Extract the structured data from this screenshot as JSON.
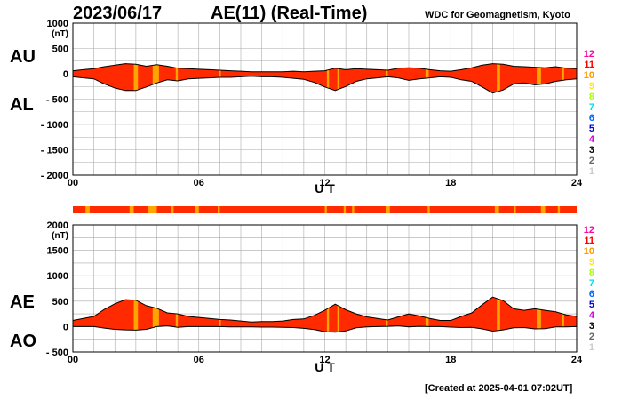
{
  "header": {
    "date": "2023/06/17",
    "title": "AE(11) (Real-Time)",
    "source": "WDC for Geomagnetism, Kyoto"
  },
  "footer": {
    "created": "[Created at 2025-04-01 07:02UT]"
  },
  "colors": {
    "fill": "#ff2a00",
    "highlight": "#ffa500",
    "grid": "#aaaaaa",
    "line": "#000000"
  },
  "legend": {
    "levels": [
      {
        "label": "12",
        "color": "#ff00aa"
      },
      {
        "label": "11",
        "color": "#ff0000"
      },
      {
        "label": "10",
        "color": "#ff9900"
      },
      {
        "label": "9",
        "color": "#ffee00"
      },
      {
        "label": "8",
        "color": "#aaff00"
      },
      {
        "label": "7",
        "color": "#00dddd"
      },
      {
        "label": "6",
        "color": "#0066ff"
      },
      {
        "label": "5",
        "color": "#0000cc"
      },
      {
        "label": "4",
        "color": "#cc00cc"
      },
      {
        "label": "3",
        "color": "#000000"
      },
      {
        "label": "2",
        "color": "#666666"
      },
      {
        "label": "1",
        "color": "#cccccc"
      }
    ]
  },
  "chart_data": [
    {
      "type": "area",
      "unit": "(nT)",
      "xlabel": "U T",
      "upper_label": "AU",
      "lower_label": "AL",
      "xlim": [
        0,
        24
      ],
      "ylim": [
        -2000,
        1000
      ],
      "x_ticks": [
        {
          "v": 0,
          "t": "00"
        },
        {
          "v": 6,
          "t": "06"
        },
        {
          "v": 12,
          "t": "12"
        },
        {
          "v": 18,
          "t": "18"
        },
        {
          "v": 24,
          "t": "24"
        }
      ],
      "y_ticks": [
        {
          "v": 1000,
          "t": "1000"
        },
        {
          "v": 500,
          "t": "500"
        },
        {
          "v": 0,
          "t": "0"
        },
        {
          "v": -500,
          "t": "- 500"
        },
        {
          "v": -1000,
          "t": "- 1000"
        },
        {
          "v": -1500,
          "t": "- 1500"
        },
        {
          "v": -2000,
          "t": "- 2000"
        }
      ],
      "series": [
        {
          "name": "AU",
          "x": [
            0,
            0.5,
            1,
            1.5,
            2,
            2.5,
            3,
            3.5,
            4,
            4.5,
            5,
            5.5,
            6,
            6.5,
            7,
            7.5,
            8,
            8.5,
            9,
            9.5,
            10,
            10.5,
            11,
            11.5,
            12,
            12.5,
            13,
            13.5,
            14,
            14.5,
            15,
            15.5,
            16,
            16.5,
            17,
            17.5,
            18,
            18.5,
            19,
            19.5,
            20,
            20.5,
            21,
            21.5,
            22,
            22.5,
            23,
            23.5,
            24
          ],
          "values": [
            60,
            80,
            100,
            140,
            170,
            200,
            190,
            150,
            180,
            150,
            110,
            100,
            90,
            80,
            70,
            60,
            50,
            40,
            40,
            40,
            40,
            50,
            40,
            50,
            60,
            110,
            80,
            100,
            90,
            80,
            70,
            110,
            120,
            110,
            80,
            60,
            50,
            80,
            120,
            170,
            200,
            190,
            150,
            140,
            130,
            120,
            140,
            110,
            100
          ]
        },
        {
          "name": "AL",
          "x": [
            0,
            0.5,
            1,
            1.5,
            2,
            2.5,
            3,
            3.5,
            4,
            4.5,
            5,
            5.5,
            6,
            6.5,
            7,
            7.5,
            8,
            8.5,
            9,
            9.5,
            10,
            10.5,
            11,
            11.5,
            12,
            12.5,
            13,
            13.5,
            14,
            14.5,
            15,
            15.5,
            16,
            16.5,
            17,
            17.5,
            18,
            18.5,
            19,
            19.5,
            20,
            20.5,
            21,
            21.5,
            22,
            22.5,
            23,
            23.5,
            24
          ],
          "values": [
            -60,
            -80,
            -100,
            -200,
            -280,
            -330,
            -330,
            -260,
            -180,
            -120,
            -140,
            -100,
            -90,
            -80,
            -70,
            -70,
            -60,
            -50,
            -60,
            -60,
            -70,
            -90,
            -110,
            -170,
            -260,
            -330,
            -250,
            -150,
            -100,
            -80,
            -60,
            -80,
            -130,
            -100,
            -80,
            -60,
            -70,
            -120,
            -150,
            -260,
            -380,
            -320,
            -200,
            -180,
            -220,
            -200,
            -150,
            -120,
            -100
          ]
        }
      ],
      "highlight_bands": [
        [
          2.9,
          3.1
        ],
        [
          3.8,
          4.1
        ],
        [
          4.9,
          5.0
        ],
        [
          6.95,
          7.05
        ],
        [
          12.1,
          12.2
        ],
        [
          12.6,
          12.7
        ],
        [
          14.9,
          15.0
        ],
        [
          16.8,
          16.95
        ],
        [
          20.2,
          20.35
        ],
        [
          22.1,
          22.3
        ],
        [
          23.3,
          23.4
        ]
      ]
    },
    {
      "type": "area",
      "unit": "(nT)",
      "xlabel": "U T",
      "upper_label": "AE",
      "lower_label": "AO",
      "xlim": [
        0,
        24
      ],
      "ylim": [
        -500,
        2000
      ],
      "x_ticks": [
        {
          "v": 0,
          "t": "00"
        },
        {
          "v": 6,
          "t": "06"
        },
        {
          "v": 12,
          "t": "12"
        },
        {
          "v": 18,
          "t": "18"
        },
        {
          "v": 24,
          "t": "24"
        }
      ],
      "y_ticks": [
        {
          "v": 2000,
          "t": "2000"
        },
        {
          "v": 1500,
          "t": "1500"
        },
        {
          "v": 1000,
          "t": "1000"
        },
        {
          "v": 500,
          "t": "500"
        },
        {
          "v": 0,
          "t": "0"
        },
        {
          "v": -500,
          "t": "- 500"
        }
      ],
      "series": [
        {
          "name": "AE",
          "x": [
            0,
            0.5,
            1,
            1.5,
            2,
            2.5,
            3,
            3.5,
            4,
            4.5,
            5,
            5.5,
            6,
            6.5,
            7,
            7.5,
            8,
            8.5,
            9,
            9.5,
            10,
            10.5,
            11,
            11.5,
            12,
            12.5,
            13,
            13.5,
            14,
            14.5,
            15,
            15.5,
            16,
            16.5,
            17,
            17.5,
            18,
            18.5,
            19,
            19.5,
            20,
            20.5,
            21,
            21.5,
            22,
            22.5,
            23,
            23.5,
            24
          ],
          "values": [
            120,
            160,
            200,
            340,
            450,
            530,
            520,
            410,
            360,
            270,
            250,
            200,
            180,
            160,
            140,
            130,
            110,
            90,
            100,
            100,
            110,
            140,
            150,
            220,
            320,
            440,
            330,
            250,
            190,
            160,
            130,
            190,
            250,
            210,
            160,
            120,
            120,
            200,
            270,
            430,
            580,
            510,
            350,
            320,
            350,
            320,
            290,
            230,
            200
          ]
        },
        {
          "name": "AO",
          "x": [
            0,
            0.5,
            1,
            1.5,
            2,
            2.5,
            3,
            3.5,
            4,
            4.5,
            5,
            5.5,
            6,
            6.5,
            7,
            7.5,
            8,
            8.5,
            9,
            9.5,
            10,
            10.5,
            11,
            11.5,
            12,
            12.5,
            13,
            13.5,
            14,
            14.5,
            15,
            15.5,
            16,
            16.5,
            17,
            17.5,
            18,
            18.5,
            19,
            19.5,
            20,
            20.5,
            21,
            21.5,
            22,
            22.5,
            23,
            23.5,
            24
          ],
          "values": [
            0,
            0,
            0,
            -30,
            -55,
            -65,
            -70,
            -55,
            0,
            15,
            -15,
            0,
            0,
            0,
            0,
            -5,
            -5,
            -5,
            -10,
            -10,
            -15,
            -20,
            -35,
            -60,
            -100,
            -110,
            -85,
            -25,
            -5,
            0,
            5,
            15,
            -5,
            5,
            0,
            0,
            -10,
            -20,
            -15,
            -45,
            -90,
            -65,
            -25,
            -20,
            -45,
            -40,
            -5,
            -5,
            0
          ]
        }
      ],
      "highlight_bands": [
        [
          2.9,
          3.1
        ],
        [
          3.8,
          4.1
        ],
        [
          4.9,
          5.0
        ],
        [
          6.95,
          7.05
        ],
        [
          12.1,
          12.2
        ],
        [
          12.6,
          12.7
        ],
        [
          14.9,
          15.0
        ],
        [
          16.8,
          16.95
        ],
        [
          20.2,
          20.35
        ],
        [
          22.1,
          22.3
        ],
        [
          23.3,
          23.4
        ]
      ]
    }
  ],
  "status_bar": {
    "xlim": [
      0,
      24
    ],
    "bands": [
      [
        0.6,
        0.8
      ],
      [
        2.7,
        2.9
      ],
      [
        3.6,
        4.0
      ],
      [
        4.7,
        4.8
      ],
      [
        5.8,
        6.0
      ],
      [
        6.9,
        7.0
      ],
      [
        12.0,
        12.1
      ],
      [
        12.9,
        13.0
      ],
      [
        13.3,
        13.4
      ],
      [
        14.9,
        15.1
      ],
      [
        16.9,
        17.0
      ],
      [
        20.1,
        20.3
      ],
      [
        21.0,
        21.1
      ],
      [
        22.3,
        22.5
      ],
      [
        23.1,
        23.2
      ]
    ]
  }
}
